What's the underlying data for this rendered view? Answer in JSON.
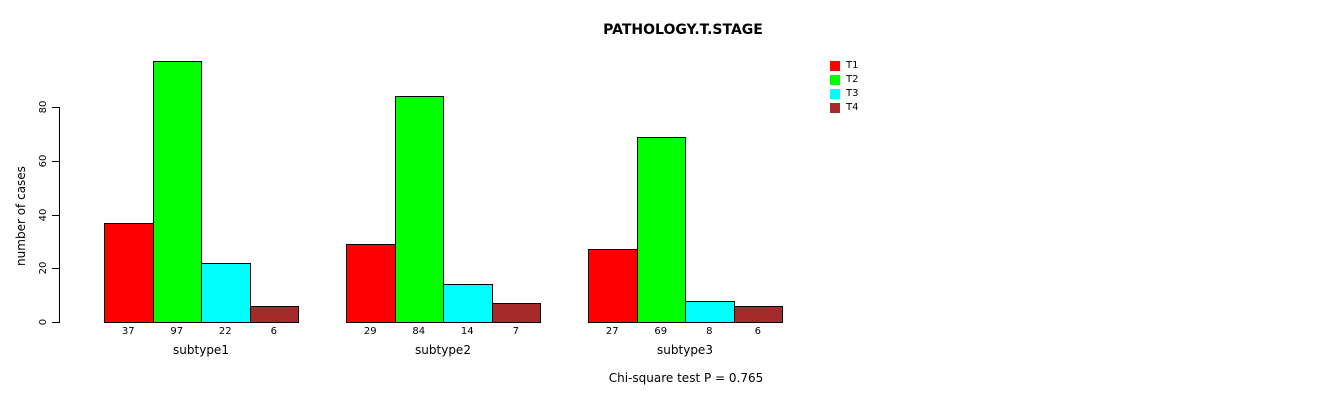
{
  "chart_data": {
    "type": "bar",
    "title": "PATHOLOGY.T.STAGE",
    "ylabel": "number of cases",
    "xlabel": "",
    "categories": [
      "subtype1",
      "subtype2",
      "subtype3"
    ],
    "series": [
      {
        "name": "T1",
        "color": "#FF0000",
        "values": [
          37,
          29,
          27
        ]
      },
      {
        "name": "T2",
        "color": "#00FF00",
        "values": [
          97,
          84,
          69
        ]
      },
      {
        "name": "T3",
        "color": "#00FFFF",
        "values": [
          22,
          14,
          8
        ]
      },
      {
        "name": "T4",
        "color": "#A52A2A",
        "values": [
          6,
          7,
          6
        ]
      }
    ],
    "yticks": [
      0,
      20,
      40,
      60,
      80
    ],
    "ylim": [
      0,
      100
    ],
    "bar_value_labels": [
      [
        37,
        97,
        22,
        6
      ],
      [
        29,
        84,
        14,
        7
      ],
      [
        27,
        69,
        8,
        6
      ]
    ],
    "grid": false,
    "legend_position": "top-right",
    "annotation": "Chi-square test P = 0.765"
  }
}
